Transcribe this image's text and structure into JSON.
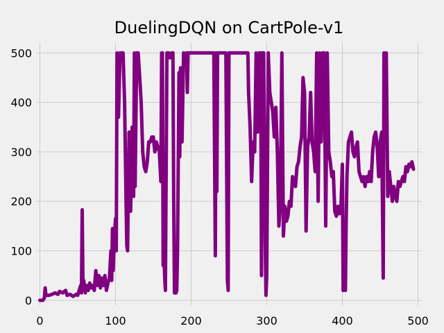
{
  "chart_data": {
    "type": "line",
    "title": "DuelingDQN on CartPole-v1",
    "xlabel": "",
    "ylabel": "",
    "xlim": [
      -5,
      505
    ],
    "ylim": [
      -10,
      520
    ],
    "x_ticks": [
      0,
      100,
      200,
      300,
      400,
      500
    ],
    "y_ticks": [
      0,
      100,
      200,
      300,
      400,
      500
    ],
    "grid": true,
    "style": "fivethirtyeight",
    "series": [
      {
        "color": "#800080",
        "points": [
          [
            0,
            0
          ],
          [
            4,
            0
          ],
          [
            6,
            5
          ],
          [
            7,
            25
          ],
          [
            8,
            10
          ],
          [
            12,
            10
          ],
          [
            16,
            12
          ],
          [
            20,
            15
          ],
          [
            24,
            12
          ],
          [
            26,
            18
          ],
          [
            30,
            15
          ],
          [
            34,
            20
          ],
          [
            36,
            10
          ],
          [
            40,
            12
          ],
          [
            44,
            8
          ],
          [
            48,
            12
          ],
          [
            50,
            10
          ],
          [
            52,
            20
          ],
          [
            54,
            30
          ],
          [
            55,
            15
          ],
          [
            56,
            183
          ],
          [
            57,
            25
          ],
          [
            58,
            40
          ],
          [
            60,
            15
          ],
          [
            62,
            30
          ],
          [
            64,
            20
          ],
          [
            66,
            35
          ],
          [
            68,
            25
          ],
          [
            70,
            30
          ],
          [
            72,
            20
          ],
          [
            74,
            60
          ],
          [
            76,
            30
          ],
          [
            78,
            50
          ],
          [
            80,
            25
          ],
          [
            82,
            45
          ],
          [
            84,
            30
          ],
          [
            86,
            50
          ],
          [
            88,
            20
          ],
          [
            90,
            35
          ],
          [
            92,
            45
          ],
          [
            94,
            100
          ],
          [
            95,
            40
          ],
          [
            96,
            145
          ],
          [
            97,
            60
          ],
          [
            98,
            110
          ],
          [
            100,
            165
          ],
          [
            101,
            100
          ],
          [
            102,
            500
          ],
          [
            104,
            370
          ],
          [
            106,
            500
          ],
          [
            110,
            500
          ],
          [
            112,
            400
          ],
          [
            114,
            200
          ],
          [
            115,
            110
          ],
          [
            116,
            100
          ],
          [
            118,
            340
          ],
          [
            120,
            180
          ],
          [
            122,
            350
          ],
          [
            124,
            210
          ],
          [
            125,
            500
          ],
          [
            126,
            230
          ],
          [
            128,
            500
          ],
          [
            130,
            500
          ],
          [
            132,
            450
          ],
          [
            134,
            400
          ],
          [
            136,
            300
          ],
          [
            138,
            270
          ],
          [
            140,
            260
          ],
          [
            142,
            280
          ],
          [
            144,
            320
          ],
          [
            146,
            320
          ],
          [
            148,
            330
          ],
          [
            150,
            330
          ],
          [
            152,
            300
          ],
          [
            154,
            320
          ],
          [
            156,
            310
          ],
          [
            158,
            300
          ],
          [
            160,
            240
          ],
          [
            161,
            500
          ],
          [
            162,
            500
          ],
          [
            163,
            70
          ],
          [
            164,
            100
          ],
          [
            165,
            50
          ],
          [
            166,
            20
          ],
          [
            168,
            500
          ],
          [
            170,
            500
          ],
          [
            172,
            490
          ],
          [
            174,
            500
          ],
          [
            176,
            500
          ],
          [
            177,
            200
          ],
          [
            178,
            15
          ],
          [
            180,
            15
          ],
          [
            181,
            20
          ],
          [
            182,
            100
          ],
          [
            184,
            460
          ],
          [
            185,
            290
          ],
          [
            186,
            470
          ],
          [
            188,
            320
          ],
          [
            190,
            500
          ],
          [
            192,
            480
          ],
          [
            194,
            500
          ],
          [
            195,
            420
          ],
          [
            196,
            500
          ],
          [
            200,
            500
          ],
          [
            210,
            500
          ],
          [
            220,
            500
          ],
          [
            228,
            500
          ],
          [
            230,
            500
          ],
          [
            232,
            90
          ],
          [
            233,
            500
          ],
          [
            234,
            220
          ],
          [
            235,
            500
          ],
          [
            240,
            500
          ],
          [
            244,
            500
          ],
          [
            246,
            500
          ],
          [
            248,
            40
          ],
          [
            249,
            20
          ],
          [
            250,
            500
          ],
          [
            260,
            500
          ],
          [
            270,
            500
          ],
          [
            275,
            500
          ],
          [
            276,
            420
          ],
          [
            278,
            350
          ],
          [
            280,
            240
          ],
          [
            282,
            320
          ],
          [
            284,
            300
          ],
          [
            286,
            500
          ],
          [
            288,
            340
          ],
          [
            290,
            500
          ],
          [
            292,
            500
          ],
          [
            293,
            50
          ],
          [
            294,
            500
          ],
          [
            296,
            500
          ],
          [
            298,
            120
          ],
          [
            299,
            10
          ],
          [
            300,
            50
          ],
          [
            302,
            500
          ],
          [
            304,
            420
          ],
          [
            306,
            400
          ],
          [
            308,
            380
          ],
          [
            310,
            330
          ],
          [
            312,
            390
          ],
          [
            314,
            300
          ],
          [
            316,
            150
          ],
          [
            318,
            200
          ],
          [
            320,
            500
          ],
          [
            322,
            130
          ],
          [
            324,
            190
          ],
          [
            326,
            160
          ],
          [
            328,
            170
          ],
          [
            330,
            200
          ],
          [
            332,
            190
          ],
          [
            334,
            250
          ],
          [
            336,
            240
          ],
          [
            338,
            230
          ],
          [
            340,
            270
          ],
          [
            342,
            280
          ],
          [
            344,
            310
          ],
          [
            346,
            330
          ],
          [
            348,
            450
          ],
          [
            350,
            420
          ],
          [
            352,
            140
          ],
          [
            354,
            310
          ],
          [
            356,
            330
          ],
          [
            358,
            420
          ],
          [
            360,
            320
          ],
          [
            362,
            300
          ],
          [
            364,
            260
          ],
          [
            366,
            500
          ],
          [
            368,
            200
          ],
          [
            370,
            500
          ],
          [
            372,
            320
          ],
          [
            374,
            500
          ],
          [
            376,
            500
          ],
          [
            378,
            150
          ],
          [
            380,
            500
          ],
          [
            382,
            300
          ],
          [
            384,
            280
          ],
          [
            386,
            250
          ],
          [
            388,
            260
          ],
          [
            390,
            180
          ],
          [
            392,
            170
          ],
          [
            394,
            190
          ],
          [
            396,
            175
          ],
          [
            398,
            180
          ],
          [
            400,
            275
          ],
          [
            401,
            20
          ],
          [
            402,
            100
          ],
          [
            403,
            30
          ],
          [
            404,
            20
          ],
          [
            405,
            160
          ],
          [
            406,
            250
          ],
          [
            408,
            320
          ],
          [
            410,
            330
          ],
          [
            412,
            340
          ],
          [
            414,
            300
          ],
          [
            416,
            290
          ],
          [
            418,
            310
          ],
          [
            420,
            320
          ],
          [
            422,
            260
          ],
          [
            424,
            250
          ],
          [
            426,
            240
          ],
          [
            428,
            250
          ],
          [
            430,
            230
          ],
          [
            432,
            250
          ],
          [
            434,
            240
          ],
          [
            436,
            260
          ],
          [
            438,
            240
          ],
          [
            440,
            300
          ],
          [
            442,
            330
          ],
          [
            444,
            340
          ],
          [
            446,
            310
          ],
          [
            448,
            250
          ],
          [
            450,
            320
          ],
          [
            452,
            340
          ],
          [
            454,
            45
          ],
          [
            455,
            500
          ],
          [
            456,
            320
          ],
          [
            458,
            500
          ],
          [
            460,
            210
          ],
          [
            462,
            260
          ],
          [
            464,
            230
          ],
          [
            466,
            200
          ],
          [
            468,
            230
          ],
          [
            470,
            210
          ],
          [
            472,
            200
          ],
          [
            474,
            240
          ],
          [
            476,
            230
          ],
          [
            478,
            240
          ],
          [
            480,
            250
          ],
          [
            482,
            240
          ],
          [
            484,
            270
          ],
          [
            486,
            260
          ],
          [
            488,
            275
          ],
          [
            490,
            270
          ],
          [
            492,
            280
          ],
          [
            494,
            265
          ]
        ]
      }
    ]
  }
}
